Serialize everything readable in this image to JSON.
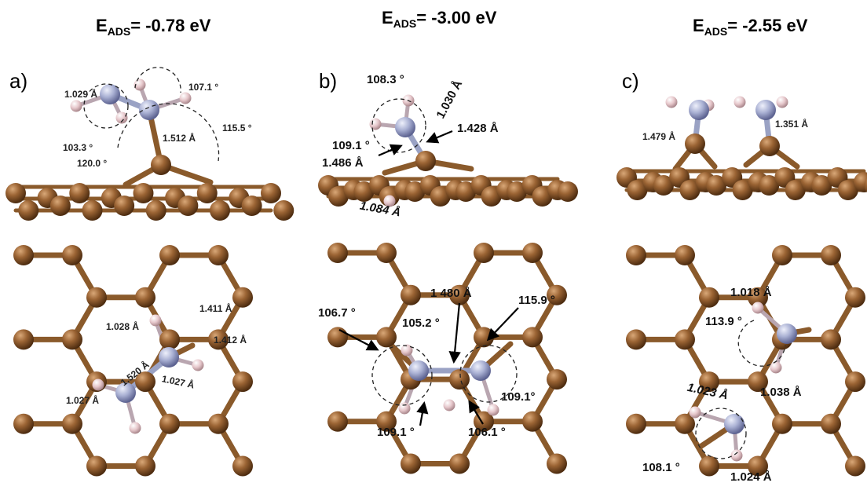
{
  "titles": [
    {
      "pre": "E",
      "sub": "ADS",
      "post": "= -0.78 eV"
    },
    {
      "pre": "E",
      "sub": "ADS",
      "post": "= -3.00 eV"
    },
    {
      "pre": "E",
      "sub": "ADS",
      "post": "= -2.55 eV"
    }
  ],
  "panels": [
    "a)",
    "b)",
    "c)"
  ],
  "annotations": {
    "a_side": [
      "1.029 Å",
      "107.1 °",
      "115.5 °",
      "1.512 Å",
      "103.3 °",
      "120.0 °"
    ],
    "a_top": [
      "1.028 Å",
      "1.411 Å",
      "1.412 Å",
      "1.520 Å",
      "1.027 Å",
      "1.027 Å"
    ],
    "b_side": [
      "108.3 °",
      "1.030 Å",
      "1.428 Å",
      "109.1 °",
      "1.486 Å",
      "1.084 Å"
    ],
    "b_top": [
      "1 480 Å",
      "115.9 °",
      "106.7 °",
      "105.2 °",
      "109.1°",
      "109.1 °",
      "106.1 °"
    ],
    "c_side": [
      "1.479 Å",
      "1.351 Å"
    ],
    "c_top": [
      "1.018 Å",
      "113.9 °",
      "1.038 Å",
      "1.023 Å",
      "108.1 °",
      "1.024 Å"
    ]
  },
  "colors": {
    "carbon": "#8b5a2b",
    "carbon_light": "#b98a5a",
    "nitrogen": "#a3aacd",
    "hydrogen": "#e0c4c8",
    "bond": "#8a5a2b"
  }
}
